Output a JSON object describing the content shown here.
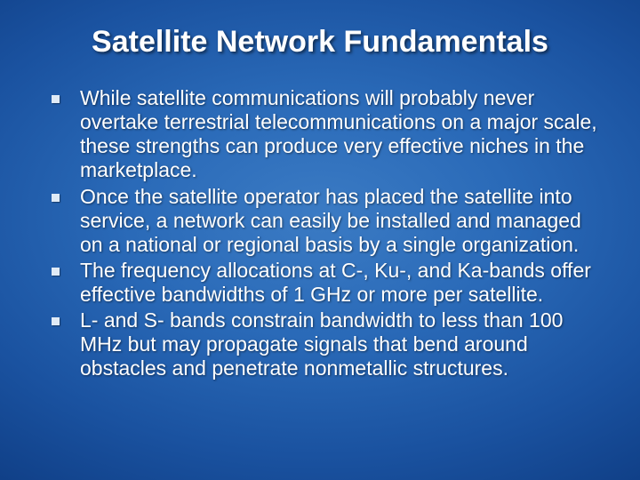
{
  "title": {
    "text": "Satellite Network Fundamentals",
    "fontsize": 34,
    "color": "#ffffff",
    "weight": "bold"
  },
  "bullets": {
    "fontsize": 23,
    "line_height": 1.18,
    "color": "#ffffff",
    "marker_color": "#dfeaf6",
    "items": [
      "While satellite communications will probably never overtake terrestrial telecommunications on a major scale, these strengths can produce very effective niches in the marketplace.",
      "Once the satellite operator has placed the satellite into service, a network can easily be installed and managed on a national or regional basis by a single organization.",
      "The frequency allocations at C-, Ku-, and Ka-bands offer effective bandwidths of 1 GHz or more per satellite.",
      "L- and S- bands constrain bandwidth to less than 100 MHz but may propagate signals that bend around obstacles and penetrate nonmetallic structures."
    ]
  },
  "background": {
    "center_color": "#3b7bc4",
    "edge_color": "#052860"
  }
}
